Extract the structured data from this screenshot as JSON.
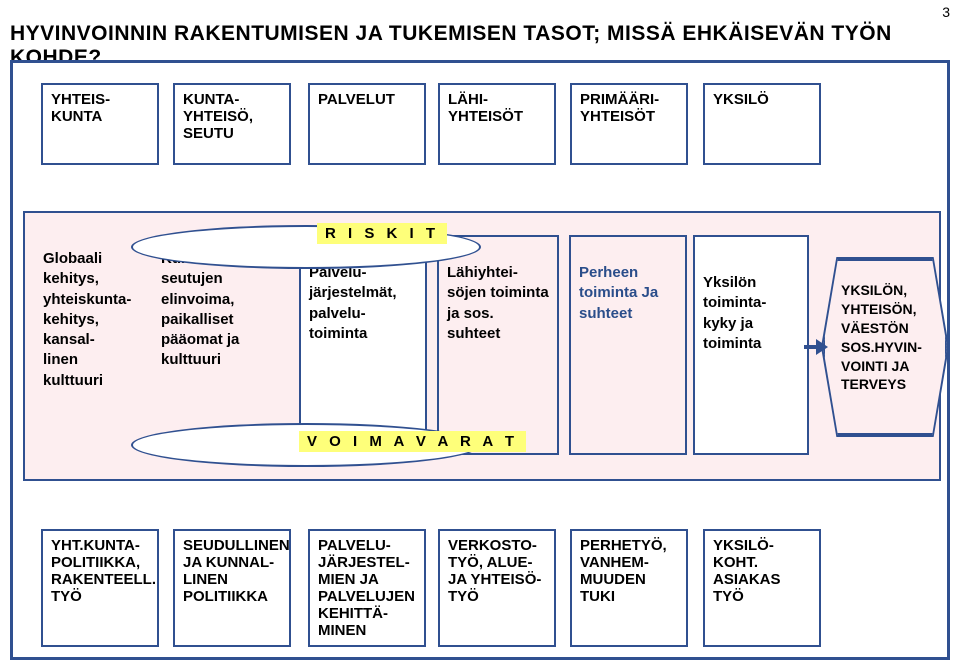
{
  "page_number": "3",
  "title": "HYVINVOINNIN RAKENTUMISEN JA TUKEMISEN TASOT;  MISSÄ EHKÄISEVÄN TYÖN KOHDE?",
  "colors": {
    "border": "#305090",
    "band_bg": "#fdeef0",
    "highlight": "#feff7a",
    "white": "#ffffff",
    "link_text": "#2a4d8a"
  },
  "header": {
    "c1": "YHTEIS-\nKUNTA",
    "c2": "KUNTA-\nYHTEISÖ,\nSEUTU",
    "c3": "PALVELUT",
    "c4": "LÄHI-\nYHTEISÖT",
    "c5": "PRIMÄÄRI-\nYHTEISÖT",
    "c6": "YKSILÖ"
  },
  "mid": {
    "riskit": "R I S K I T",
    "voimavarat": "V O I M A V A R A T",
    "c1": "Globaali kehitys, yhteiskunta-kehitys, kansal-\nlinen kulttuuri",
    "c2": "Kuntien ja seutujen elinvoima, paikalliset pääomat ja kulttuuri",
    "c3": "Palvelu-\njärjestelmät, palvelu-\ntoiminta",
    "c4": "Lähiyhtei-\nsöjen toiminta ja sos. suhteet",
    "c5": "Perheen toiminta Ja suhteet",
    "c6": "Yksilön toiminta-\nkyky ja toiminta",
    "outcome": "YKSILÖN, YHTEISÖN, VÄESTÖN SOS.HYVIN-\nVOINTI JA TERVEYS"
  },
  "footer": {
    "c1": "YHT.KUNTA-\nPOLITIIKKA, RAKENTEELL. TYÖ",
    "c2": "SEUDULLINEN JA KUNNAL-\nLINEN POLITIIKKA",
    "c3": "PALVELU-\nJÄRJESTEL-\nMIEN JA PALVELUJEN KEHITTÄ-\nMINEN",
    "c4": "VERKOSTO-\nTYÖ, ALUE- JA YHTEISÖ-\nTYÖ",
    "c5": "PERHETYÖ, VANHEM-\nMUUDEN TUKI",
    "c6": "YKSILÖ-\nKOHT. ASIAKAS TYÖ"
  }
}
